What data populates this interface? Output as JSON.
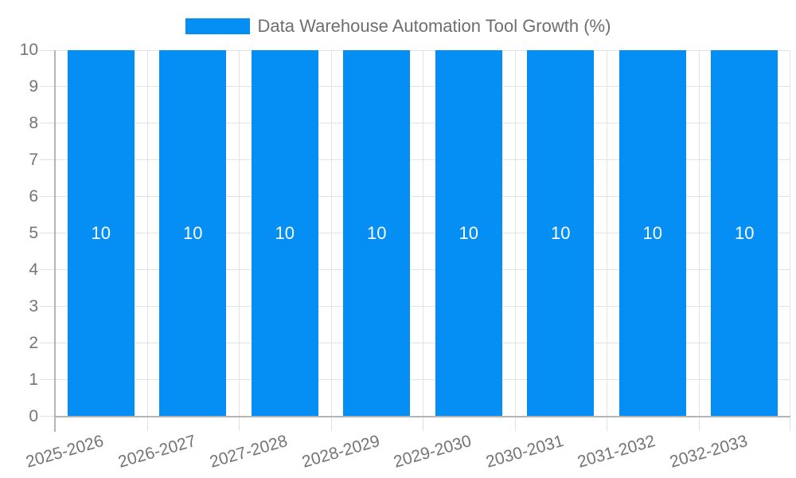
{
  "legend": {
    "label": "Data Warehouse Automation Tool Growth (%)",
    "swatch_color": "#058ff5"
  },
  "chart_data": {
    "type": "bar",
    "title": "Data Warehouse Automation Tool Growth (%)",
    "categories": [
      "2025-2026",
      "2026-2027",
      "2027-2028",
      "2028-2029",
      "2029-2030",
      "2030-2031",
      "2031-2032",
      "2032-2033"
    ],
    "values": [
      10,
      10,
      10,
      10,
      10,
      10,
      10,
      10
    ],
    "bar_value_labels": [
      "10",
      "10",
      "10",
      "10",
      "10",
      "10",
      "10",
      "10"
    ],
    "series": [
      {
        "name": "Data Warehouse Automation Tool Growth (%)",
        "values": [
          10,
          10,
          10,
          10,
          10,
          10,
          10,
          10
        ]
      }
    ],
    "xlabel": "",
    "ylabel": "",
    "ylim": [
      0,
      10
    ],
    "y_ticks": [
      0,
      1,
      2,
      3,
      4,
      5,
      6,
      7,
      8,
      9,
      10
    ],
    "grid": true,
    "legend_position": "top",
    "bar_color": "#058ff5",
    "value_label_color": "#ffffff",
    "axis_label_color": "#757575",
    "axis_line_color": "#b5b5b5",
    "gridline_color": "#e3e3e3",
    "x_label_rotation_deg": -16
  }
}
